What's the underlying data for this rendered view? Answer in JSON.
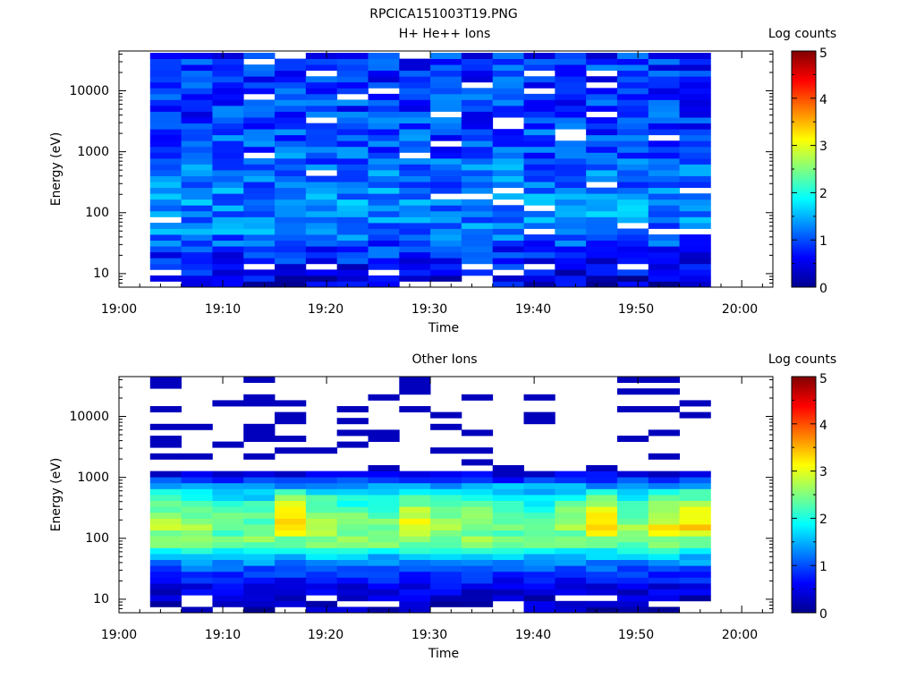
{
  "figure": {
    "title": "RPCICA151003T19.PNG"
  },
  "chart_data": [
    {
      "type": "heatmap",
      "title": "H+ He++ Ions",
      "xlabel": "Time",
      "ylabel": "Energy (eV)",
      "x_ticks": [
        "19:00",
        "19:10",
        "19:20",
        "19:30",
        "19:40",
        "19:50",
        "20:00"
      ],
      "xlim": [
        "19:00",
        "20:03"
      ],
      "y_scale": "log",
      "y_ticks": [
        "10",
        "100",
        "1000",
        "10000"
      ],
      "ylim": [
        6,
        45000
      ],
      "time_bins": [
        "19:03",
        "19:06",
        "19:09",
        "19:12",
        "19:15",
        "19:18",
        "19:21",
        "19:24",
        "19:27",
        "19:30",
        "19:33",
        "19:36",
        "19:39",
        "19:42",
        "19:45",
        "19:48",
        "19:51",
        "19:54"
      ],
      "data_range": [
        "19:03",
        "19:57"
      ],
      "colorbar": {
        "label": "Log counts",
        "ticks": [
          "0",
          "1",
          "2",
          "3",
          "4",
          "5"
        ],
        "range": [
          0,
          5
        ]
      },
      "value_profile": {
        "energy": [
          8,
          20,
          50,
          100,
          300,
          1000,
          3000,
          10000,
          40000
        ],
        "log_counts": [
          0.5,
          0.8,
          1.2,
          1.3,
          1.2,
          1.0,
          0.9,
          0.9,
          0.8
        ]
      }
    },
    {
      "type": "heatmap",
      "title": "Other Ions",
      "xlabel": "Time",
      "ylabel": "Energy (eV)",
      "x_ticks": [
        "19:00",
        "19:10",
        "19:20",
        "19:30",
        "19:40",
        "19:50",
        "20:00"
      ],
      "xlim": [
        "19:00",
        "20:03"
      ],
      "y_scale": "log",
      "y_ticks": [
        "10",
        "100",
        "1000",
        "10000"
      ],
      "ylim": [
        6,
        45000
      ],
      "time_bins": [
        "19:03",
        "19:06",
        "19:09",
        "19:12",
        "19:15",
        "19:18",
        "19:21",
        "19:24",
        "19:27",
        "19:30",
        "19:33",
        "19:36",
        "19:39",
        "19:42",
        "19:45",
        "19:48",
        "19:51",
        "19:54"
      ],
      "data_range": [
        "19:03",
        "19:57"
      ],
      "colorbar": {
        "label": "Log counts",
        "ticks": [
          "0",
          "1",
          "2",
          "3",
          "4",
          "5"
        ],
        "range": [
          0,
          5
        ]
      },
      "value_profile": {
        "energy": [
          8,
          20,
          40,
          80,
          150,
          300,
          600,
          1000,
          1500
        ],
        "log_counts": [
          0.3,
          0.7,
          1.3,
          2.4,
          2.9,
          2.6,
          1.8,
          0.6,
          0.3
        ]
      },
      "peak_log_counts": [
        2.8,
        2.6,
        2.5,
        2.4,
        3.3,
        2.8,
        2.5,
        2.4,
        3.0,
        2.7,
        2.6,
        2.5,
        2.4,
        2.6,
        3.2,
        2.6,
        3.1,
        3.3
      ]
    }
  ]
}
